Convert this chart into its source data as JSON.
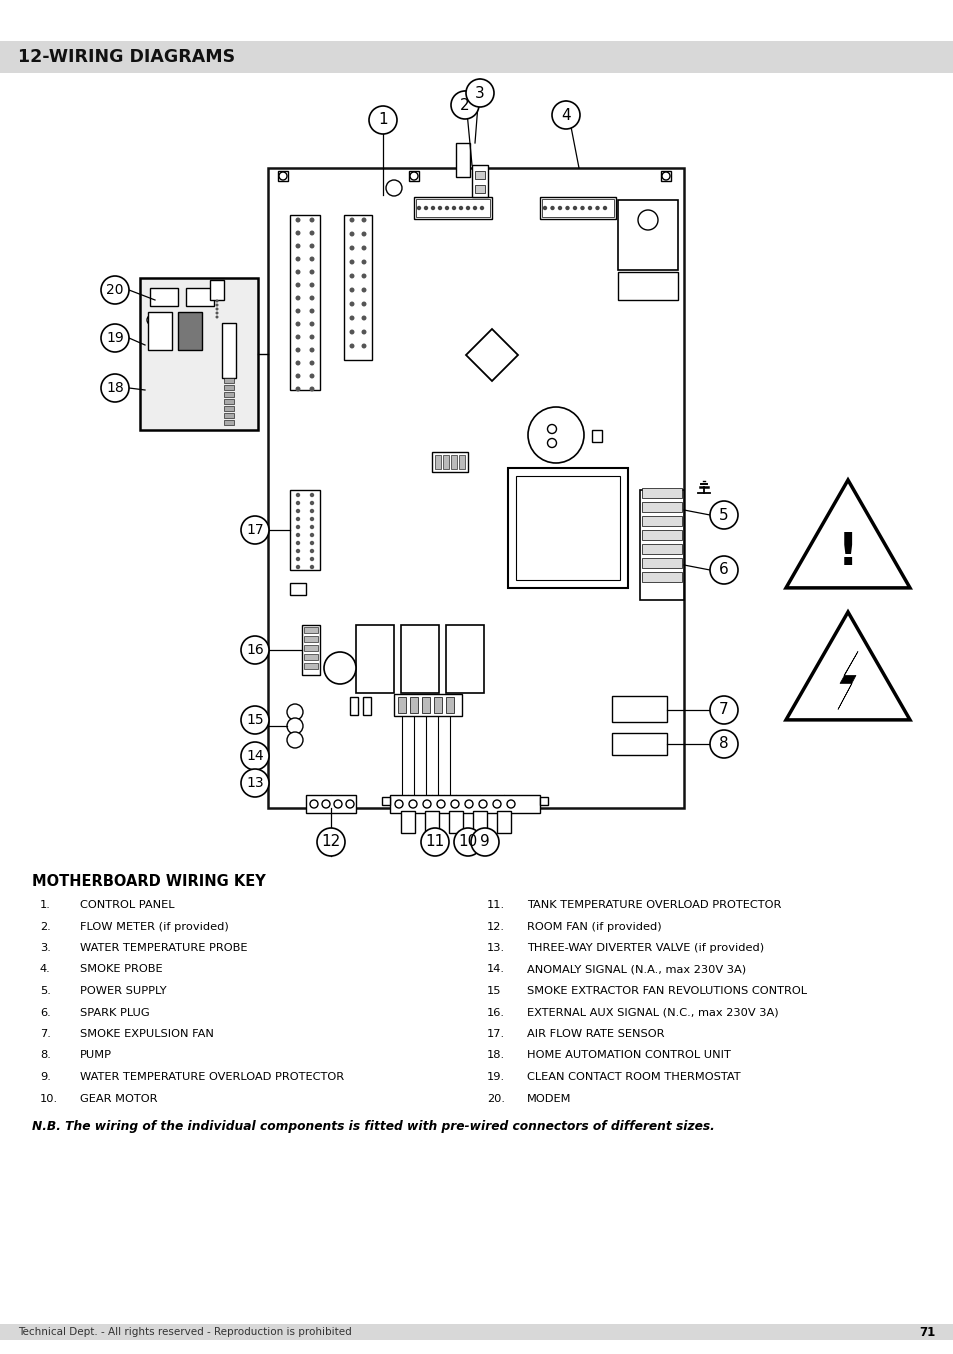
{
  "title": "12-WIRING DIAGRAMS",
  "title_bg": "#d8d8d8",
  "page_bg": "#ffffff",
  "footer_text": "Technical Dept. - All rights reserved - Reproduction is prohibited",
  "page_number": "71",
  "wiring_key_title": "MOTHERBOARD WIRING KEY",
  "items_left": [
    {
      "num": "1.",
      "text": "CONTROL PANEL"
    },
    {
      "num": "2.",
      "text": "FLOW METER (if provided)"
    },
    {
      "num": "3.",
      "text": "WATER TEMPERATURE PROBE"
    },
    {
      "num": "4.",
      "text": "SMOKE PROBE"
    },
    {
      "num": "5.",
      "text": "POWER SUPPLY"
    },
    {
      "num": "6.",
      "text": "SPARK PLUG"
    },
    {
      "num": "7.",
      "text": "SMOKE EXPULSION FAN"
    },
    {
      "num": "8.",
      "text": "PUMP"
    },
    {
      "num": "9.",
      "text": "WATER TEMPERATURE OVERLOAD PROTECTOR"
    },
    {
      "num": "10.",
      "text": "GEAR MOTOR"
    }
  ],
  "items_right": [
    {
      "num": "11.",
      "text": "TANK TEMPERATURE OVERLOAD PROTECTOR"
    },
    {
      "num": "12.",
      "text": "ROOM FAN (if provided)"
    },
    {
      "num": "13.",
      "text": "THREE-WAY DIVERTER VALVE (if provided)"
    },
    {
      "num": "14.",
      "text": "ANOMALY SIGNAL (N.A., max 230V 3A)"
    },
    {
      "num": "15",
      "text": "SMOKE EXTRACTOR FAN REVOLUTIONS CONTROL"
    },
    {
      "num": "16.",
      "text": "EXTERNAL AUX SIGNAL (N.C., max 230V 3A)"
    },
    {
      "num": "17.",
      "text": "AIR FLOW RATE SENSOR"
    },
    {
      "num": "18.",
      "text": "HOME AUTOMATION CONTROL UNIT"
    },
    {
      "num": "19.",
      "text": "CLEAN CONTACT ROOM THERMOSTAT"
    },
    {
      "num": "20.",
      "text": "MODEM"
    }
  ],
  "nb_text": "N.B. The wiring of the individual components is fitted with pre-wired connectors of different sizes."
}
